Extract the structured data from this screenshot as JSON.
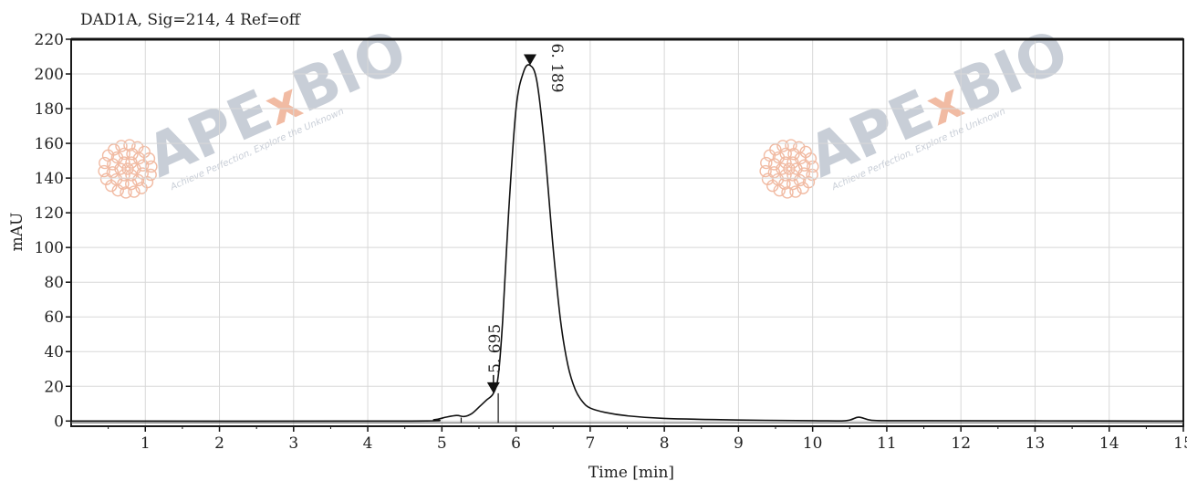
{
  "chart_data": {
    "type": "line",
    "title": "DAD1A, Sig=214, 4   Ref=off",
    "xlabel": "Time [min]",
    "ylabel": "mAU",
    "xlim": [
      0,
      15
    ],
    "ylim": [
      -3,
      220
    ],
    "xticks": [
      1,
      2,
      3,
      4,
      5,
      6,
      7,
      8,
      9,
      10,
      11,
      12,
      13,
      14,
      15
    ],
    "yticks": [
      0,
      20,
      40,
      60,
      80,
      100,
      120,
      140,
      160,
      180,
      200,
      220
    ],
    "grid": true,
    "baseline": -1,
    "series": [
      {
        "x": [
          0,
          4.5,
          4.9,
          5.05,
          5.2,
          5.3,
          5.4,
          5.5,
          5.6,
          5.695,
          5.76,
          5.82,
          5.9,
          6.0,
          6.1,
          6.189,
          6.28,
          6.38,
          6.5,
          6.6,
          6.7,
          6.8,
          6.9,
          7.0,
          7.2,
          7.5,
          8.0,
          9.0,
          10.0,
          10.45,
          10.62,
          10.8,
          11.2,
          13.0,
          15.0
        ],
        "y": [
          0,
          0,
          0.8,
          2.2,
          3.2,
          2.6,
          4.2,
          8.0,
          12.0,
          16.0,
          26.0,
          58.0,
          120.0,
          180.0,
          201.0,
          205.0,
          196.0,
          160.0,
          100.0,
          58.0,
          32.0,
          18.0,
          11.0,
          7.5,
          5.0,
          3.0,
          1.5,
          0.6,
          0.2,
          0.2,
          2.2,
          0.4,
          0.2,
          0.1,
          0
        ]
      }
    ],
    "peaks": [
      {
        "time": 5.695,
        "label": "5. 695",
        "height": 16
      },
      {
        "time": 6.189,
        "label": "6. 189",
        "height": 205
      }
    ]
  },
  "watermark": {
    "brand_prefix": "APE",
    "brand_x": "x",
    "brand_suffix": "BIO",
    "tagline": "Achieve Perfection, Explore the Unknown",
    "text_color": "#c3c9d3",
    "accent_color": "#f0b49a"
  }
}
